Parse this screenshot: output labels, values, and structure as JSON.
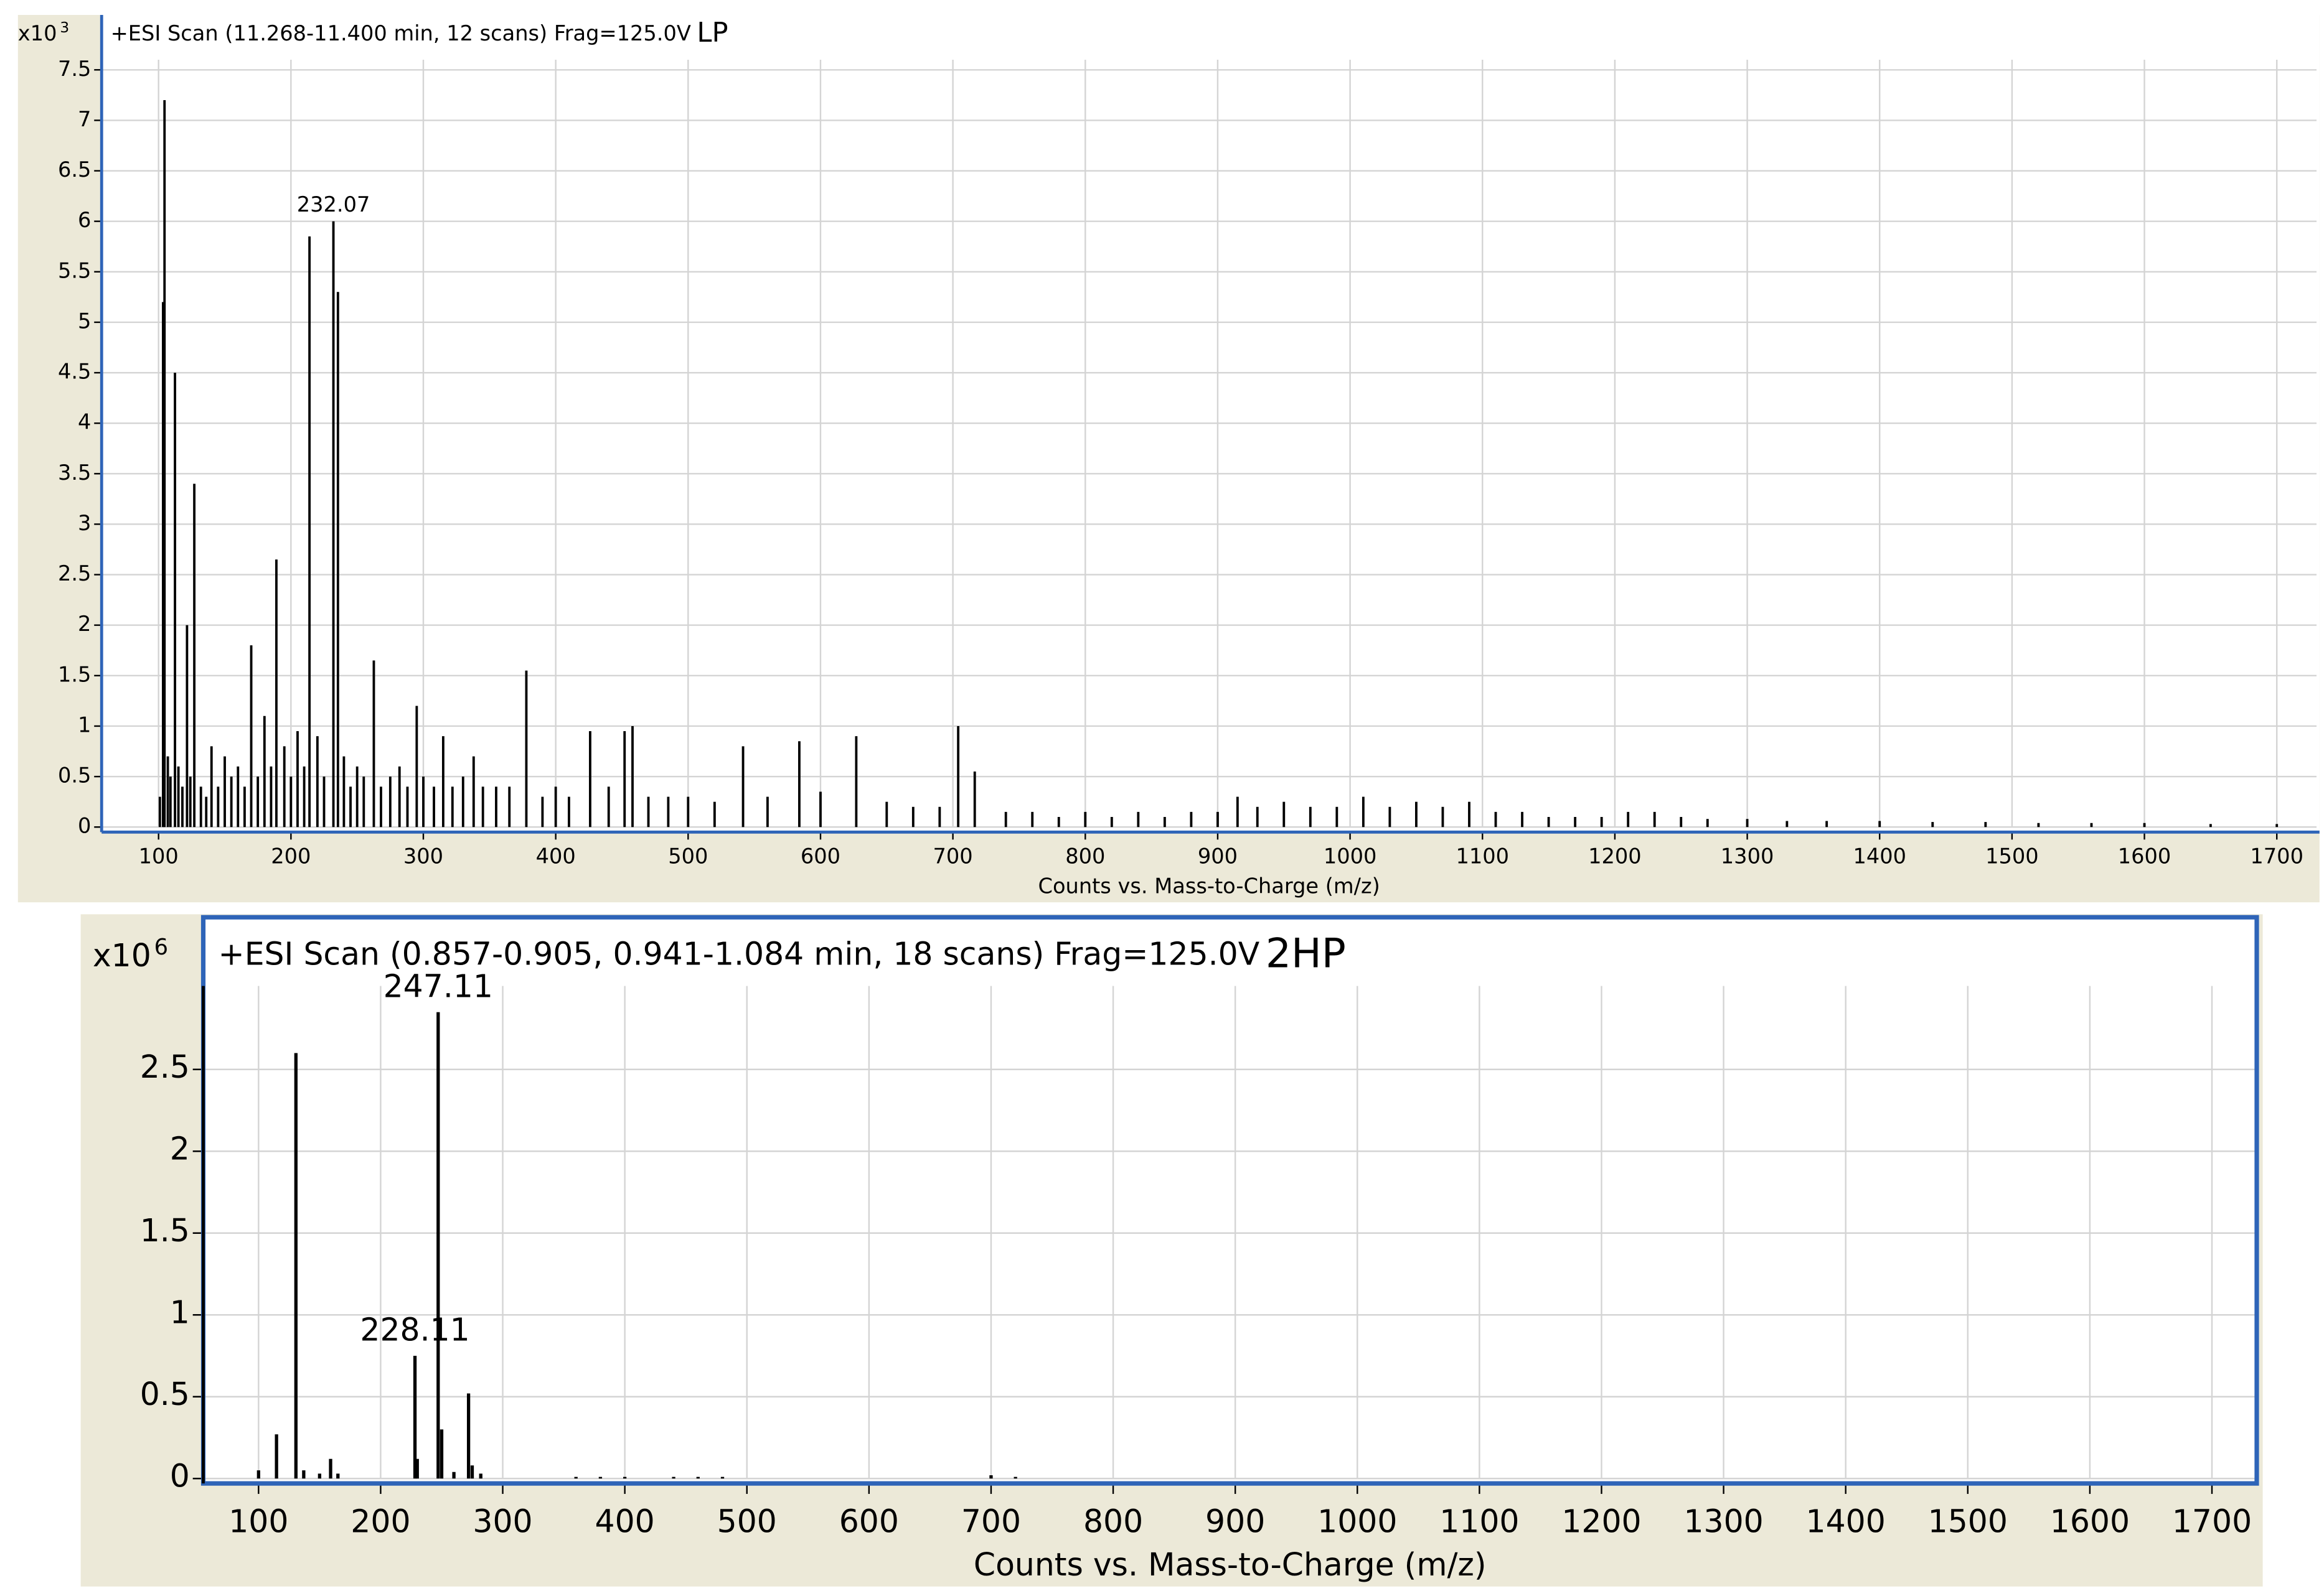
{
  "chart_data": [
    {
      "type": "bar",
      "title": "+ESI Scan (11.268-11.400 min, 12 scans) Frag=125.0V",
      "sample_label": "LP",
      "y_scale_label": "x10",
      "y_scale_exponent": "3",
      "x_label": "Counts vs. Mass-to-Charge (m/z)",
      "color": "#000000",
      "grid": true,
      "xlim": [
        57,
        1730
      ],
      "ylim": [
        -0.05,
        7.6
      ],
      "xticks": [
        100,
        200,
        300,
        400,
        500,
        600,
        700,
        800,
        900,
        1000,
        1100,
        1200,
        1300,
        1400,
        1500,
        1600,
        1700
      ],
      "yticks": [
        0,
        0.5,
        1,
        1.5,
        2,
        2.5,
        3,
        3.5,
        4,
        4.5,
        5,
        5.5,
        6,
        6.5,
        7,
        7.5
      ],
      "annotations": [
        {
          "text": "232.07",
          "x": 232.07,
          "y": 6.0
        }
      ],
      "x": [
        101,
        103.4,
        104.5,
        107,
        109,
        112.4,
        115,
        118,
        121.5,
        124,
        127,
        132,
        136,
        140,
        145,
        150,
        155,
        160,
        165,
        170,
        175,
        180,
        185,
        189,
        195,
        200,
        205,
        210,
        214,
        220,
        225,
        232.07,
        235.5,
        240,
        245,
        250,
        255,
        262.6,
        268,
        275,
        282,
        288,
        295,
        300,
        308,
        315,
        322,
        330,
        338,
        345,
        355,
        365,
        377.8,
        390,
        400,
        410,
        426,
        440,
        452,
        458,
        470,
        485,
        500,
        520,
        541.5,
        560,
        584,
        600,
        627,
        650,
        670,
        690,
        704,
        716.5,
        740,
        760,
        780,
        800,
        820,
        840,
        860,
        880,
        900,
        915,
        930,
        950,
        970,
        990,
        1010,
        1030,
        1050,
        1070,
        1090,
        1110,
        1130,
        1150,
        1170,
        1190,
        1210,
        1230,
        1250,
        1270,
        1300,
        1330,
        1360,
        1400,
        1440,
        1480,
        1520,
        1560,
        1600,
        1650,
        1700
      ],
      "values": [
        0.3,
        5.2,
        7.2,
        0.7,
        0.5,
        4.5,
        0.6,
        0.4,
        2.0,
        0.5,
        3.4,
        0.4,
        0.3,
        0.8,
        0.4,
        0.7,
        0.5,
        0.6,
        0.4,
        1.8,
        0.5,
        1.1,
        0.6,
        2.65,
        0.8,
        0.5,
        0.95,
        0.6,
        5.85,
        0.9,
        0.5,
        6.0,
        5.3,
        0.7,
        0.4,
        0.6,
        0.5,
        1.65,
        0.4,
        0.5,
        0.6,
        0.4,
        1.2,
        0.5,
        0.4,
        0.9,
        0.4,
        0.5,
        0.7,
        0.4,
        0.4,
        0.4,
        1.55,
        0.3,
        0.4,
        0.3,
        0.95,
        0.4,
        0.95,
        1.0,
        0.3,
        0.3,
        0.3,
        0.25,
        0.8,
        0.3,
        0.85,
        0.35,
        0.9,
        0.25,
        0.2,
        0.2,
        1.0,
        0.55,
        0.15,
        0.15,
        0.1,
        0.15,
        0.1,
        0.15,
        0.1,
        0.15,
        0.15,
        0.3,
        0.2,
        0.25,
        0.2,
        0.2,
        0.3,
        0.2,
        0.25,
        0.2,
        0.25,
        0.15,
        0.15,
        0.1,
        0.1,
        0.1,
        0.15,
        0.15,
        0.1,
        0.08,
        0.08,
        0.06,
        0.06,
        0.06,
        0.05,
        0.05,
        0.04,
        0.04,
        0.04,
        0.03,
        0.03
      ]
    },
    {
      "type": "bar",
      "title": "+ESI Scan (0.857-0.905, 0.941-1.084 min, 18 scans) Frag=125.0V",
      "sample_label": "2HP",
      "y_scale_label": "x10",
      "y_scale_exponent": "6",
      "x_label": "Counts vs. Mass-to-Charge (m/z)",
      "color": "#000000",
      "grid": true,
      "xlim": [
        54.7,
        1736.7
      ],
      "ylim": [
        -0.03,
        3.01
      ],
      "xticks": [
        100,
        200,
        300,
        400,
        500,
        600,
        700,
        800,
        900,
        1000,
        1100,
        1200,
        1300,
        1400,
        1500,
        1600,
        1700
      ],
      "yticks": [
        0,
        0.5,
        1,
        1.5,
        2,
        2.5
      ],
      "annotations": [
        {
          "text": "247.11",
          "x": 247.11,
          "y": 2.85
        },
        {
          "text": "228.11",
          "x": 228.11,
          "y": 0.75
        }
      ],
      "x": [
        100,
        114.7,
        130.6,
        137,
        150,
        159,
        165,
        228.11,
        230,
        247.11,
        250,
        260,
        272,
        275,
        282,
        360,
        380,
        400,
        440,
        460,
        480,
        700,
        720
      ],
      "values": [
        0.05,
        0.27,
        2.6,
        0.05,
        0.03,
        0.12,
        0.03,
        0.75,
        0.12,
        2.85,
        0.3,
        0.04,
        0.52,
        0.08,
        0.03,
        0.01,
        0.01,
        0.01,
        0.01,
        0.01,
        0.01,
        0.02,
        0.01
      ]
    }
  ]
}
